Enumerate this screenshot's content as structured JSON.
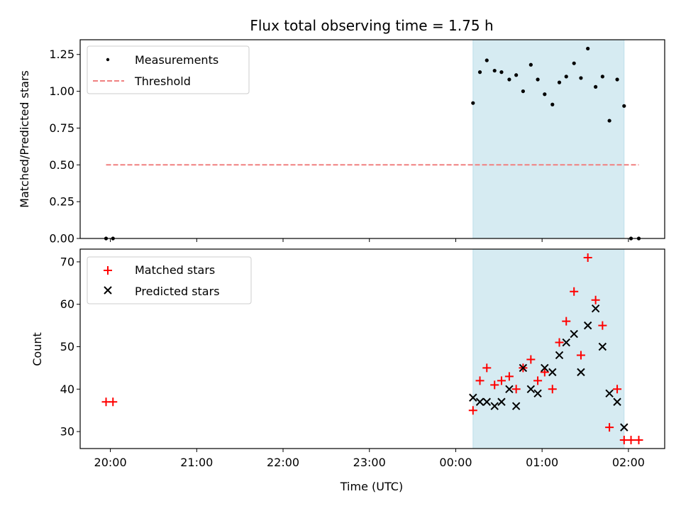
{
  "figure": {
    "title": "Flux total observing time = 1.75 h",
    "xlabel": "Time (UTC)"
  },
  "colors": {
    "shade": "#add8e6",
    "measurement": "#000000",
    "threshold": "#f08080",
    "matched": "#ff0000",
    "predicted": "#000000"
  },
  "chart_data": [
    {
      "type": "scatter",
      "panel": "top",
      "ylabel": "Matched/Predicted stars",
      "xlim": [
        -0.35,
        6.42
      ],
      "ylim": [
        0,
        1.35
      ],
      "yticks": [
        0,
        0.25,
        0.5,
        0.75,
        1.0,
        1.25
      ],
      "ytick_labels": [
        "0.00",
        "0.25",
        "0.50",
        "0.75",
        "1.00",
        "1.25"
      ],
      "xticks": [
        0,
        1,
        2,
        3,
        4,
        5,
        6
      ],
      "shaded_interval": [
        4.2,
        5.95
      ],
      "threshold": {
        "name": "Threshold",
        "y": 0.5,
        "x_range": [
          -0.05,
          6.12
        ],
        "style": "dashed"
      },
      "series": [
        {
          "name": "Measurements",
          "marker": "dot",
          "x": [
            -0.05,
            0.03,
            4.2,
            4.28,
            4.36,
            4.45,
            4.53,
            4.62,
            4.7,
            4.78,
            4.87,
            4.95,
            5.03,
            5.12,
            5.2,
            5.28,
            5.37,
            5.45,
            5.53,
            5.62,
            5.7,
            5.78,
            5.87,
            5.95,
            6.03,
            6.12
          ],
          "y": [
            0,
            0,
            0.92,
            1.13,
            1.21,
            1.14,
            1.13,
            1.08,
            1.11,
            1.0,
            1.18,
            1.08,
            0.98,
            0.91,
            1.06,
            1.1,
            1.19,
            1.09,
            1.29,
            1.03,
            1.1,
            0.8,
            1.08,
            0.9,
            0,
            0
          ]
        }
      ]
    },
    {
      "type": "scatter",
      "panel": "bottom",
      "ylabel": "Count",
      "xlim": [
        -0.35,
        6.42
      ],
      "ylim": [
        26,
        73
      ],
      "yticks": [
        30,
        40,
        50,
        60,
        70
      ],
      "ytick_labels": [
        "30",
        "40",
        "50",
        "60",
        "70"
      ],
      "xticks": [
        0,
        1,
        2,
        3,
        4,
        5,
        6
      ],
      "xtick_labels": [
        "20:00",
        "21:00",
        "22:00",
        "23:00",
        "00:00",
        "01:00",
        "02:00"
      ],
      "shaded_interval": [
        4.2,
        5.95
      ],
      "series": [
        {
          "name": "Matched stars",
          "marker": "plus",
          "x": [
            -0.05,
            0.03,
            4.2,
            4.28,
            4.36,
            4.45,
            4.53,
            4.62,
            4.7,
            4.78,
            4.87,
            4.95,
            5.03,
            5.12,
            5.2,
            5.28,
            5.37,
            5.45,
            5.53,
            5.62,
            5.7,
            5.78,
            5.87,
            5.95,
            6.03,
            6.12
          ],
          "y": [
            37,
            37,
            35,
            42,
            45,
            41,
            42,
            43,
            40,
            45,
            47,
            42,
            44,
            40,
            51,
            56,
            63,
            48,
            71,
            61,
            55,
            31,
            40,
            28,
            28,
            28
          ]
        },
        {
          "name": "Predicted stars",
          "marker": "x",
          "x": [
            4.2,
            4.28,
            4.36,
            4.45,
            4.53,
            4.62,
            4.7,
            4.78,
            4.87,
            4.95,
            5.03,
            5.12,
            5.2,
            5.28,
            5.37,
            5.45,
            5.53,
            5.62,
            5.7,
            5.78,
            5.87,
            5.95
          ],
          "y": [
            38,
            37,
            37,
            36,
            37,
            40,
            36,
            45,
            40,
            39,
            45,
            44,
            48,
            51,
            53,
            44,
            55,
            59,
            50,
            39,
            37,
            31
          ]
        }
      ]
    }
  ]
}
